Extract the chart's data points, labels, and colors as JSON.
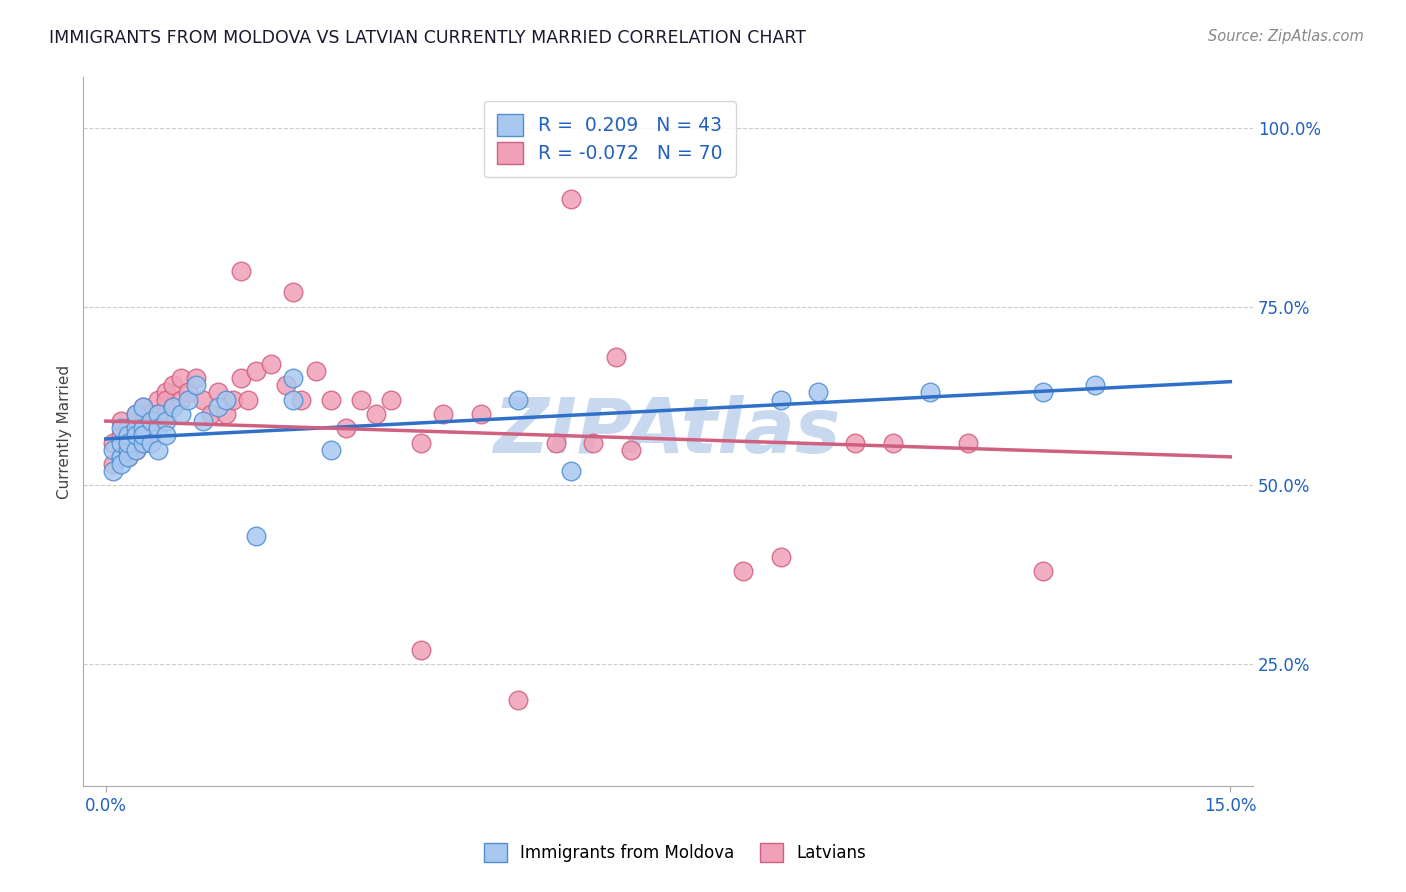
{
  "title": "IMMIGRANTS FROM MOLDOVA VS LATVIAN CURRENTLY MARRIED CORRELATION CHART",
  "source": "Source: ZipAtlas.com",
  "ylabel": "Currently Married",
  "x_min": 0.0,
  "x_max": 0.15,
  "y_min": 0.08,
  "y_max": 1.07,
  "legend_blue_r": "0.209",
  "legend_blue_n": "43",
  "legend_pink_r": "-0.072",
  "legend_pink_n": "70",
  "legend_label_blue": "Immigrants from Moldova",
  "legend_label_pink": "Latvians",
  "blue_fill": "#A8C8F0",
  "blue_edge": "#5090D0",
  "pink_fill": "#F0A0B8",
  "pink_edge": "#D06080",
  "blue_line_color": "#3070C8",
  "pink_line_color": "#D06080",
  "grid_color": "#CCCCCC",
  "watermark_color": "#C8D8EE",
  "blue_x": [
    0.001,
    0.001,
    0.002,
    0.002,
    0.002,
    0.002,
    0.003,
    0.003,
    0.003,
    0.003,
    0.004,
    0.004,
    0.004,
    0.004,
    0.005,
    0.005,
    0.005,
    0.005,
    0.006,
    0.006,
    0.007,
    0.007,
    0.007,
    0.008,
    0.008,
    0.009,
    0.01,
    0.011,
    0.012,
    0.013,
    0.015,
    0.016,
    0.02,
    0.025,
    0.025,
    0.03,
    0.055,
    0.062,
    0.09,
    0.095,
    0.11,
    0.125,
    0.132
  ],
  "blue_y": [
    0.55,
    0.52,
    0.54,
    0.56,
    0.53,
    0.58,
    0.55,
    0.57,
    0.54,
    0.56,
    0.58,
    0.55,
    0.57,
    0.6,
    0.56,
    0.58,
    0.61,
    0.57,
    0.59,
    0.56,
    0.6,
    0.58,
    0.55,
    0.59,
    0.57,
    0.61,
    0.6,
    0.62,
    0.64,
    0.59,
    0.61,
    0.62,
    0.43,
    0.65,
    0.62,
    0.55,
    0.62,
    0.52,
    0.62,
    0.63,
    0.63,
    0.63,
    0.64
  ],
  "pink_x": [
    0.001,
    0.001,
    0.002,
    0.002,
    0.002,
    0.003,
    0.003,
    0.003,
    0.003,
    0.004,
    0.004,
    0.004,
    0.004,
    0.004,
    0.005,
    0.005,
    0.005,
    0.005,
    0.005,
    0.006,
    0.006,
    0.006,
    0.006,
    0.007,
    0.007,
    0.007,
    0.008,
    0.008,
    0.008,
    0.009,
    0.009,
    0.01,
    0.01,
    0.011,
    0.012,
    0.013,
    0.014,
    0.015,
    0.016,
    0.017,
    0.018,
    0.019,
    0.02,
    0.022,
    0.024,
    0.026,
    0.028,
    0.03,
    0.032,
    0.034,
    0.036,
    0.038,
    0.042,
    0.045,
    0.05,
    0.06,
    0.065,
    0.07,
    0.085,
    0.09,
    0.1,
    0.105,
    0.115,
    0.125,
    0.018,
    0.025,
    0.042,
    0.055,
    0.062,
    0.068
  ],
  "pink_y": [
    0.56,
    0.53,
    0.57,
    0.54,
    0.59,
    0.55,
    0.57,
    0.54,
    0.58,
    0.56,
    0.59,
    0.57,
    0.55,
    0.6,
    0.58,
    0.56,
    0.59,
    0.56,
    0.61,
    0.59,
    0.57,
    0.6,
    0.58,
    0.62,
    0.59,
    0.6,
    0.63,
    0.6,
    0.62,
    0.64,
    0.61,
    0.65,
    0.62,
    0.63,
    0.65,
    0.62,
    0.6,
    0.63,
    0.6,
    0.62,
    0.65,
    0.62,
    0.66,
    0.67,
    0.64,
    0.62,
    0.66,
    0.62,
    0.58,
    0.62,
    0.6,
    0.62,
    0.56,
    0.6,
    0.6,
    0.56,
    0.56,
    0.55,
    0.38,
    0.4,
    0.56,
    0.56,
    0.56,
    0.38,
    0.8,
    0.77,
    0.27,
    0.2,
    0.9,
    0.68
  ],
  "blue_trendline": [
    0.565,
    0.645
  ],
  "pink_trendline": [
    0.59,
    0.54
  ]
}
